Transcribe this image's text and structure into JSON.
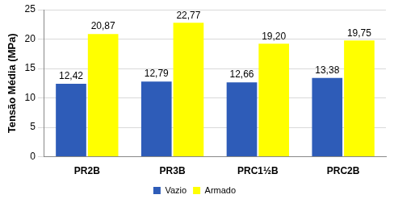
{
  "chart_data": {
    "type": "bar",
    "y_label": "Tensão Média (MPa)",
    "categories": [
      "PR2B",
      "PR3B",
      "PRC1½B",
      "PRC2B"
    ],
    "series": [
      {
        "name": "Vazio",
        "color": "#2e5cb8",
        "values": [
          12.42,
          12.79,
          12.66,
          13.38
        ],
        "value_labels": [
          "12,42",
          "12,79",
          "12,66",
          "13,38"
        ]
      },
      {
        "name": "Armado",
        "color": "#ffff00",
        "values": [
          20.87,
          22.77,
          19.2,
          19.75
        ],
        "value_labels": [
          "20,87",
          "22,77",
          "19,20",
          "19,75"
        ]
      }
    ],
    "ylim": [
      0,
      25
    ],
    "yticks": [
      0,
      5,
      10,
      15,
      20,
      25
    ],
    "grid": true,
    "legend": "bottom",
    "data_labels": true
  }
}
